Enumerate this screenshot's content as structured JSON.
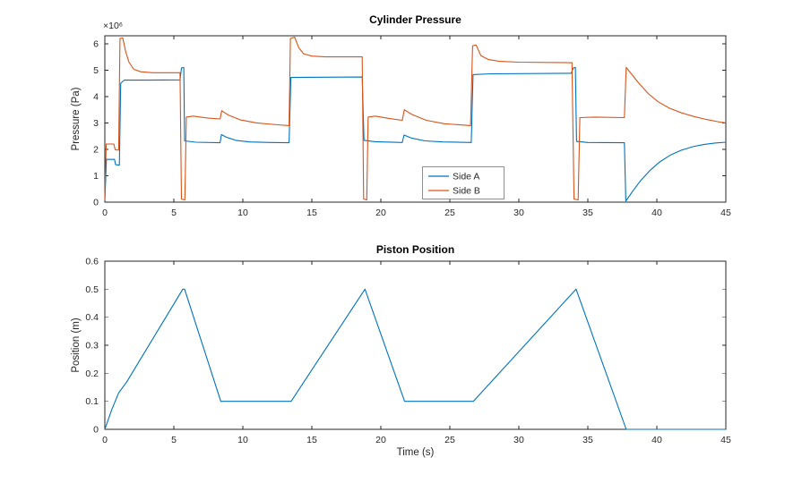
{
  "figure": {
    "background": "#ffffff"
  },
  "colors": {
    "axis": "#262626",
    "title": "#000000",
    "legend_border": "#8f8f8f",
    "side_a": "#0072BD",
    "side_b": "#D95319",
    "position_line": "#0072BD"
  },
  "chart_data": [
    {
      "id": "pressure",
      "type": "line",
      "title": "Cylinder Pressure",
      "xlabel": "",
      "ylabel": "Pressure (Pa)",
      "y_scale_label": "×10⁶",
      "xlim": [
        0,
        45
      ],
      "ylim": [
        0,
        6.3
      ],
      "xticks": [
        0,
        5,
        10,
        15,
        20,
        25,
        30,
        35,
        40,
        45
      ],
      "xtick_labels": [
        "0",
        "5",
        "10",
        "15",
        "20",
        "25",
        "30",
        "35",
        "40",
        "45"
      ],
      "yticks": [
        0,
        1,
        2,
        3,
        4,
        5,
        6
      ],
      "ytick_labels": [
        "0",
        "1",
        "2",
        "3",
        "4",
        "5",
        "6"
      ],
      "grid": false,
      "legend": {
        "visible": true,
        "position": "inside-bottom-center",
        "entries": [
          "Side A",
          "Side B"
        ]
      },
      "series": [
        {
          "name": "Side A",
          "color": "#0072BD",
          "points": [
            [
              0,
              0.05
            ],
            [
              0.12,
              1.62
            ],
            [
              0.7,
              1.62
            ],
            [
              0.78,
              1.42
            ],
            [
              1.05,
              1.4
            ],
            [
              1.15,
              4.5
            ],
            [
              1.4,
              4.62
            ],
            [
              3.0,
              4.62
            ],
            [
              5.45,
              4.63
            ],
            [
              5.55,
              5.08
            ],
            [
              5.72,
              5.1
            ],
            [
              5.78,
              2.32
            ],
            [
              6.6,
              2.27
            ],
            [
              8.35,
              2.25
            ],
            [
              8.45,
              2.56
            ],
            [
              8.8,
              2.46
            ],
            [
              9.5,
              2.34
            ],
            [
              10.5,
              2.28
            ],
            [
              12.0,
              2.26
            ],
            [
              13.35,
              2.25
            ],
            [
              13.48,
              4.72
            ],
            [
              14.5,
              4.73
            ],
            [
              18.65,
              4.74
            ],
            [
              18.78,
              2.34
            ],
            [
              19.6,
              2.29
            ],
            [
              21.55,
              2.26
            ],
            [
              21.68,
              2.54
            ],
            [
              22.2,
              2.43
            ],
            [
              23.2,
              2.32
            ],
            [
              24.5,
              2.28
            ],
            [
              26.55,
              2.26
            ],
            [
              26.68,
              4.83
            ],
            [
              28.0,
              4.86
            ],
            [
              33.8,
              4.88
            ],
            [
              33.95,
              5.08
            ],
            [
              34.1,
              5.1
            ],
            [
              34.18,
              2.3
            ],
            [
              35.0,
              2.26
            ],
            [
              37.65,
              2.25
            ],
            [
              37.75,
              0.04
            ],
            [
              38.2,
              0.38
            ],
            [
              38.8,
              0.8
            ],
            [
              39.5,
              1.2
            ],
            [
              40.2,
              1.52
            ],
            [
              41.0,
              1.79
            ],
            [
              41.8,
              1.97
            ],
            [
              42.6,
              2.1
            ],
            [
              43.4,
              2.18
            ],
            [
              44.2,
              2.24
            ],
            [
              45,
              2.27
            ]
          ]
        },
        {
          "name": "Side B",
          "color": "#D95319",
          "points": [
            [
              0,
              0.1
            ],
            [
              0.1,
              2.2
            ],
            [
              0.65,
              2.2
            ],
            [
              0.75,
              1.98
            ],
            [
              1.0,
              1.97
            ],
            [
              1.1,
              6.2
            ],
            [
              1.3,
              6.22
            ],
            [
              1.5,
              5.72
            ],
            [
              1.75,
              5.3
            ],
            [
              2.1,
              5.03
            ],
            [
              2.6,
              4.94
            ],
            [
              3.5,
              4.9
            ],
            [
              5.45,
              4.9
            ],
            [
              5.55,
              0.12
            ],
            [
              5.8,
              0.08
            ],
            [
              5.9,
              3.22
            ],
            [
              6.4,
              3.26
            ],
            [
              7.5,
              3.18
            ],
            [
              8.35,
              3.15
            ],
            [
              8.47,
              3.46
            ],
            [
              8.95,
              3.3
            ],
            [
              9.8,
              3.12
            ],
            [
              11.0,
              3.0
            ],
            [
              12.5,
              2.93
            ],
            [
              13.35,
              2.9
            ],
            [
              13.45,
              6.2
            ],
            [
              13.75,
              6.25
            ],
            [
              14.05,
              5.85
            ],
            [
              14.4,
              5.62
            ],
            [
              15.0,
              5.53
            ],
            [
              16.0,
              5.5
            ],
            [
              18.65,
              5.5
            ],
            [
              18.75,
              0.12
            ],
            [
              18.98,
              0.08
            ],
            [
              19.08,
              3.22
            ],
            [
              19.6,
              3.26
            ],
            [
              20.6,
              3.17
            ],
            [
              21.55,
              3.1
            ],
            [
              21.7,
              3.5
            ],
            [
              22.25,
              3.32
            ],
            [
              23.3,
              3.1
            ],
            [
              24.6,
              2.97
            ],
            [
              26.5,
              2.9
            ],
            [
              26.65,
              5.92
            ],
            [
              26.9,
              5.95
            ],
            [
              27.25,
              5.55
            ],
            [
              27.8,
              5.4
            ],
            [
              28.6,
              5.33
            ],
            [
              30.0,
              5.3
            ],
            [
              33.85,
              5.28
            ],
            [
              34.0,
              0.12
            ],
            [
              34.3,
              0.08
            ],
            [
              34.42,
              3.2
            ],
            [
              35.5,
              3.22
            ],
            [
              37.65,
              3.2
            ],
            [
              37.78,
              5.1
            ],
            [
              38.15,
              4.86
            ],
            [
              38.7,
              4.5
            ],
            [
              39.4,
              4.1
            ],
            [
              40.1,
              3.8
            ],
            [
              40.9,
              3.56
            ],
            [
              41.8,
              3.38
            ],
            [
              42.7,
              3.24
            ],
            [
              43.6,
              3.13
            ],
            [
              44.4,
              3.05
            ],
            [
              45,
              3.0
            ]
          ]
        }
      ]
    },
    {
      "id": "position",
      "type": "line",
      "title": "Piston Position",
      "xlabel": "Time (s)",
      "ylabel": "Position (m)",
      "y_scale_label": "",
      "xlim": [
        0,
        45
      ],
      "ylim": [
        0,
        0.6
      ],
      "xticks": [
        0,
        5,
        10,
        15,
        20,
        25,
        30,
        35,
        40,
        45
      ],
      "xtick_labels": [
        "0",
        "5",
        "10",
        "15",
        "20",
        "25",
        "30",
        "35",
        "40",
        "45"
      ],
      "yticks": [
        0,
        0.1,
        0.2,
        0.3,
        0.4,
        0.5,
        0.6
      ],
      "ytick_labels": [
        "0",
        "0.1",
        "0.2",
        "0.3",
        "0.4",
        "0.5",
        "0.6"
      ],
      "grid": false,
      "legend": {
        "visible": false,
        "entries": []
      },
      "series": [
        {
          "name": "Position",
          "color": "#0072BD",
          "points": [
            [
              0,
              0
            ],
            [
              0.5,
              0.07
            ],
            [
              1.0,
              0.13
            ],
            [
              1.6,
              0.17
            ],
            [
              5.65,
              0.5
            ],
            [
              5.78,
              0.5
            ],
            [
              8.4,
              0.1
            ],
            [
              13.5,
              0.1
            ],
            [
              18.85,
              0.5
            ],
            [
              21.72,
              0.1
            ],
            [
              26.7,
              0.1
            ],
            [
              34.15,
              0.5
            ],
            [
              37.78,
              0
            ],
            [
              45,
              0
            ]
          ]
        }
      ]
    }
  ]
}
